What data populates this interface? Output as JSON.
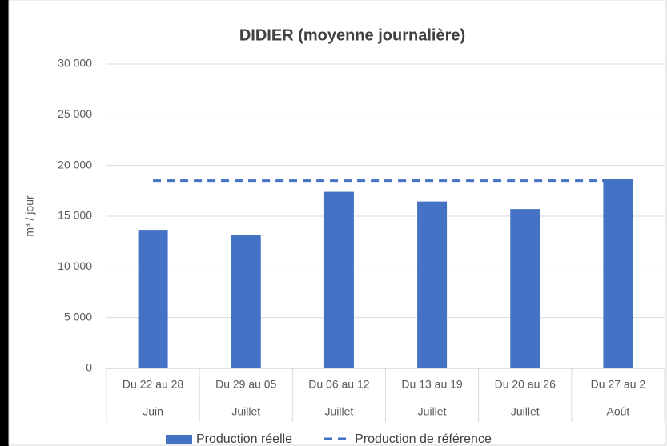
{
  "chart_data": {
    "type": "bar",
    "title": "DIDIER (moyenne journalière)",
    "y_label": "m³ / jour",
    "categories": [
      "Du 22 au 28",
      "Du 29 au 05",
      "Du 06 au 12",
      "Du 13 au 19",
      "Du 20 au 26",
      "Du 27 au 2"
    ],
    "category_groups": [
      "Juin",
      "Juillet",
      "Juillet",
      "Juillet",
      "Juillet",
      "Août"
    ],
    "series": [
      {
        "name": "Production réelle",
        "type": "bar",
        "color": "#4472c4",
        "values": [
          13650,
          13150,
          17400,
          16450,
          15700,
          18700
        ]
      },
      {
        "name": "Production de référence",
        "type": "line",
        "dashed": true,
        "color": "#4472c4",
        "values": [
          18500,
          18500,
          18500,
          18500,
          18500,
          18500
        ]
      }
    ],
    "ylim": [
      0,
      30000
    ],
    "yticks": [
      0,
      {
        "value": 5000,
        "label": "5 000"
      },
      {
        "value": 10000,
        "label": "10 000"
      },
      {
        "value": 15000,
        "label": "15 000"
      },
      {
        "value": 20000,
        "label": "20 000"
      },
      {
        "value": 25000,
        "label": "25 000"
      },
      {
        "value": 30000,
        "label": "30 000"
      }
    ],
    "grid": true,
    "legend": "bottom"
  }
}
